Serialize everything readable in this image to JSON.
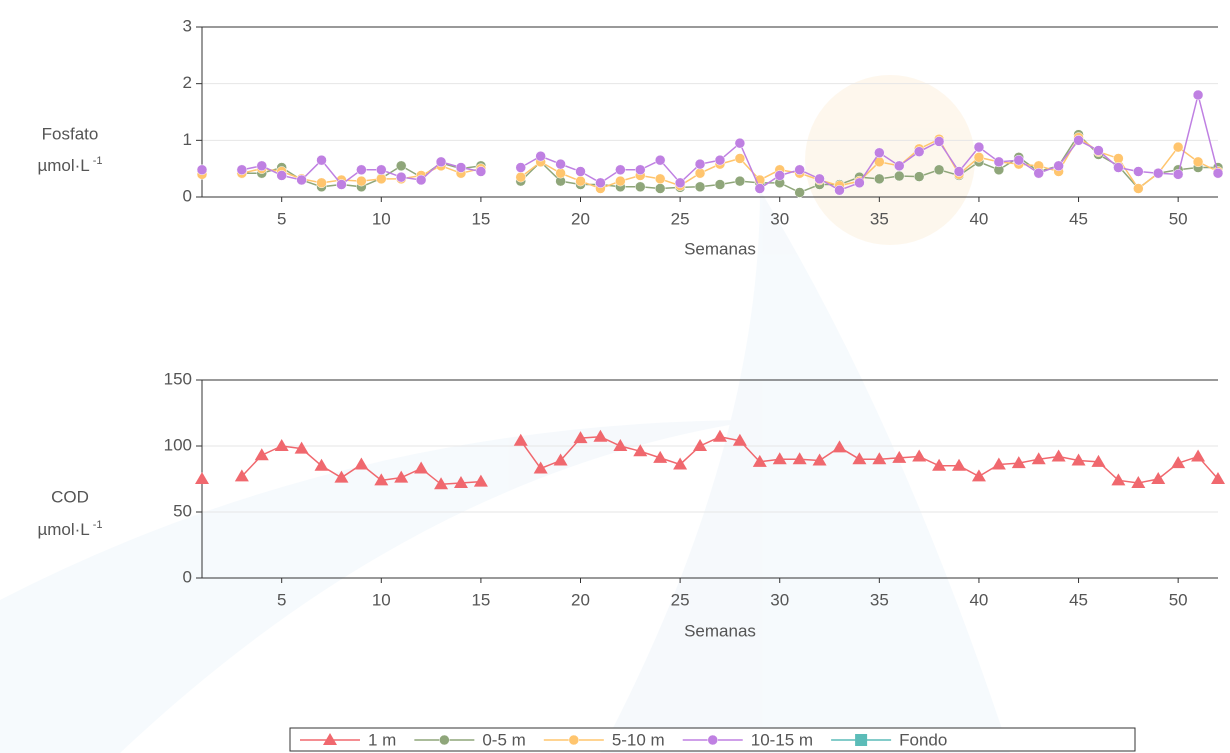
{
  "chart_data": [
    {
      "type": "line",
      "ylabel": "Fosfato",
      "ylabel_unit": "µmol·L",
      "ylabel_unit_sup": "-1",
      "xlabel": "Semanas",
      "x": [
        1,
        2,
        3,
        4,
        5,
        6,
        7,
        8,
        9,
        10,
        11,
        12,
        13,
        14,
        15,
        16,
        17,
        18,
        19,
        20,
        21,
        22,
        23,
        24,
        25,
        26,
        27,
        28,
        29,
        30,
        31,
        32,
        33,
        34,
        35,
        36,
        37,
        38,
        39,
        40,
        41,
        42,
        43,
        44,
        45,
        46,
        47,
        48,
        49,
        50,
        51,
        52
      ],
      "xlim": [
        1,
        52
      ],
      "xticks": [
        5,
        10,
        15,
        20,
        25,
        30,
        35,
        40,
        45,
        50
      ],
      "ylim": [
        0,
        3
      ],
      "yticks": [
        0,
        1,
        2,
        3
      ],
      "grid": true,
      "series": [
        {
          "name": "0-5 m",
          "color": "#8fa67a",
          "marker": "circle",
          "values": [
            0.45,
            null,
            0.42,
            0.42,
            0.52,
            0.3,
            0.18,
            0.22,
            0.18,
            0.33,
            0.55,
            0.35,
            0.6,
            0.5,
            0.55,
            null,
            0.28,
            0.62,
            0.28,
            0.22,
            0.22,
            0.18,
            0.18,
            0.15,
            0.17,
            0.18,
            0.22,
            0.28,
            0.25,
            0.25,
            0.08,
            0.22,
            0.22,
            0.35,
            0.32,
            0.37,
            0.36,
            0.48,
            0.38,
            0.62,
            0.48,
            0.7,
            0.45,
            0.55,
            1.1,
            0.75,
            0.55,
            0.15,
            0.42,
            0.48,
            0.52,
            0.52
          ]
        },
        {
          "name": "5-10 m",
          "color": "#ffc56e",
          "marker": "circle",
          "values": [
            0.4,
            null,
            0.42,
            0.5,
            0.45,
            0.32,
            0.25,
            0.3,
            0.28,
            0.32,
            0.32,
            0.38,
            0.55,
            0.42,
            0.5,
            null,
            0.35,
            0.62,
            0.42,
            0.28,
            0.15,
            0.28,
            0.38,
            0.32,
            0.2,
            0.42,
            0.58,
            0.68,
            0.3,
            0.48,
            0.42,
            0.3,
            0.2,
            0.28,
            0.62,
            0.55,
            0.85,
            1.02,
            0.4,
            0.7,
            0.62,
            0.58,
            0.55,
            0.45,
            1.05,
            0.8,
            0.68,
            0.15,
            0.42,
            0.88,
            0.62,
            0.45
          ]
        },
        {
          "name": "10-15 m",
          "color": "#bf80e2",
          "marker": "circle",
          "values": [
            0.48,
            null,
            0.48,
            0.55,
            0.38,
            0.3,
            0.65,
            0.22,
            0.48,
            0.48,
            0.35,
            0.3,
            0.62,
            0.52,
            0.45,
            null,
            0.52,
            0.72,
            0.58,
            0.45,
            0.25,
            0.48,
            0.48,
            0.65,
            0.25,
            0.58,
            0.65,
            0.95,
            0.15,
            0.38,
            0.48,
            0.32,
            0.12,
            0.25,
            0.78,
            0.55,
            0.8,
            0.98,
            0.45,
            0.88,
            0.62,
            0.65,
            0.42,
            0.55,
            1.0,
            0.82,
            0.52,
            0.45,
            0.42,
            0.4,
            1.8,
            0.42
          ]
        }
      ]
    },
    {
      "type": "line",
      "ylabel": "COD",
      "ylabel_unit": "µmol·L",
      "ylabel_unit_sup": "-1",
      "xlabel": "Semanas",
      "x": [
        1,
        2,
        3,
        4,
        5,
        6,
        7,
        8,
        9,
        10,
        11,
        12,
        13,
        14,
        15,
        16,
        17,
        18,
        19,
        20,
        21,
        22,
        23,
        24,
        25,
        26,
        27,
        28,
        29,
        30,
        31,
        32,
        33,
        34,
        35,
        36,
        37,
        38,
        39,
        40,
        41,
        42,
        43,
        44,
        45,
        46,
        47,
        48,
        49,
        50,
        51,
        52
      ],
      "xlim": [
        1,
        52
      ],
      "xticks": [
        5,
        10,
        15,
        20,
        25,
        30,
        35,
        40,
        45,
        50
      ],
      "ylim": [
        0,
        150
      ],
      "yticks": [
        0,
        50,
        100,
        150
      ],
      "grid": true,
      "series": [
        {
          "name": "1 m",
          "color": "#f0686e",
          "marker": "triangle",
          "values": [
            75,
            null,
            77,
            93,
            100,
            98,
            85,
            76,
            86,
            74,
            76,
            83,
            71,
            72,
            73,
            null,
            104,
            83,
            89,
            106,
            107,
            100,
            96,
            91,
            86,
            100,
            107,
            104,
            88,
            90,
            90,
            89,
            99,
            90,
            90,
            91,
            92,
            85,
            85,
            77,
            86,
            87,
            90,
            92,
            89,
            88,
            74,
            72,
            75,
            87,
            92,
            75
          ]
        },
        {
          "name": "Fondo",
          "color": "#5bbcb8",
          "marker": "square",
          "values": [
            null,
            null,
            null,
            null,
            null,
            null,
            null,
            null,
            null,
            null,
            null,
            null,
            null,
            null,
            null,
            null,
            null,
            null,
            null,
            null,
            null,
            null,
            null,
            null,
            null,
            null,
            null,
            null,
            null,
            null,
            null,
            null,
            null,
            null,
            null,
            null,
            null,
            null,
            null,
            null,
            null,
            null,
            null,
            null,
            null,
            null,
            null,
            null,
            null,
            null,
            null,
            null
          ]
        }
      ]
    }
  ]
}
